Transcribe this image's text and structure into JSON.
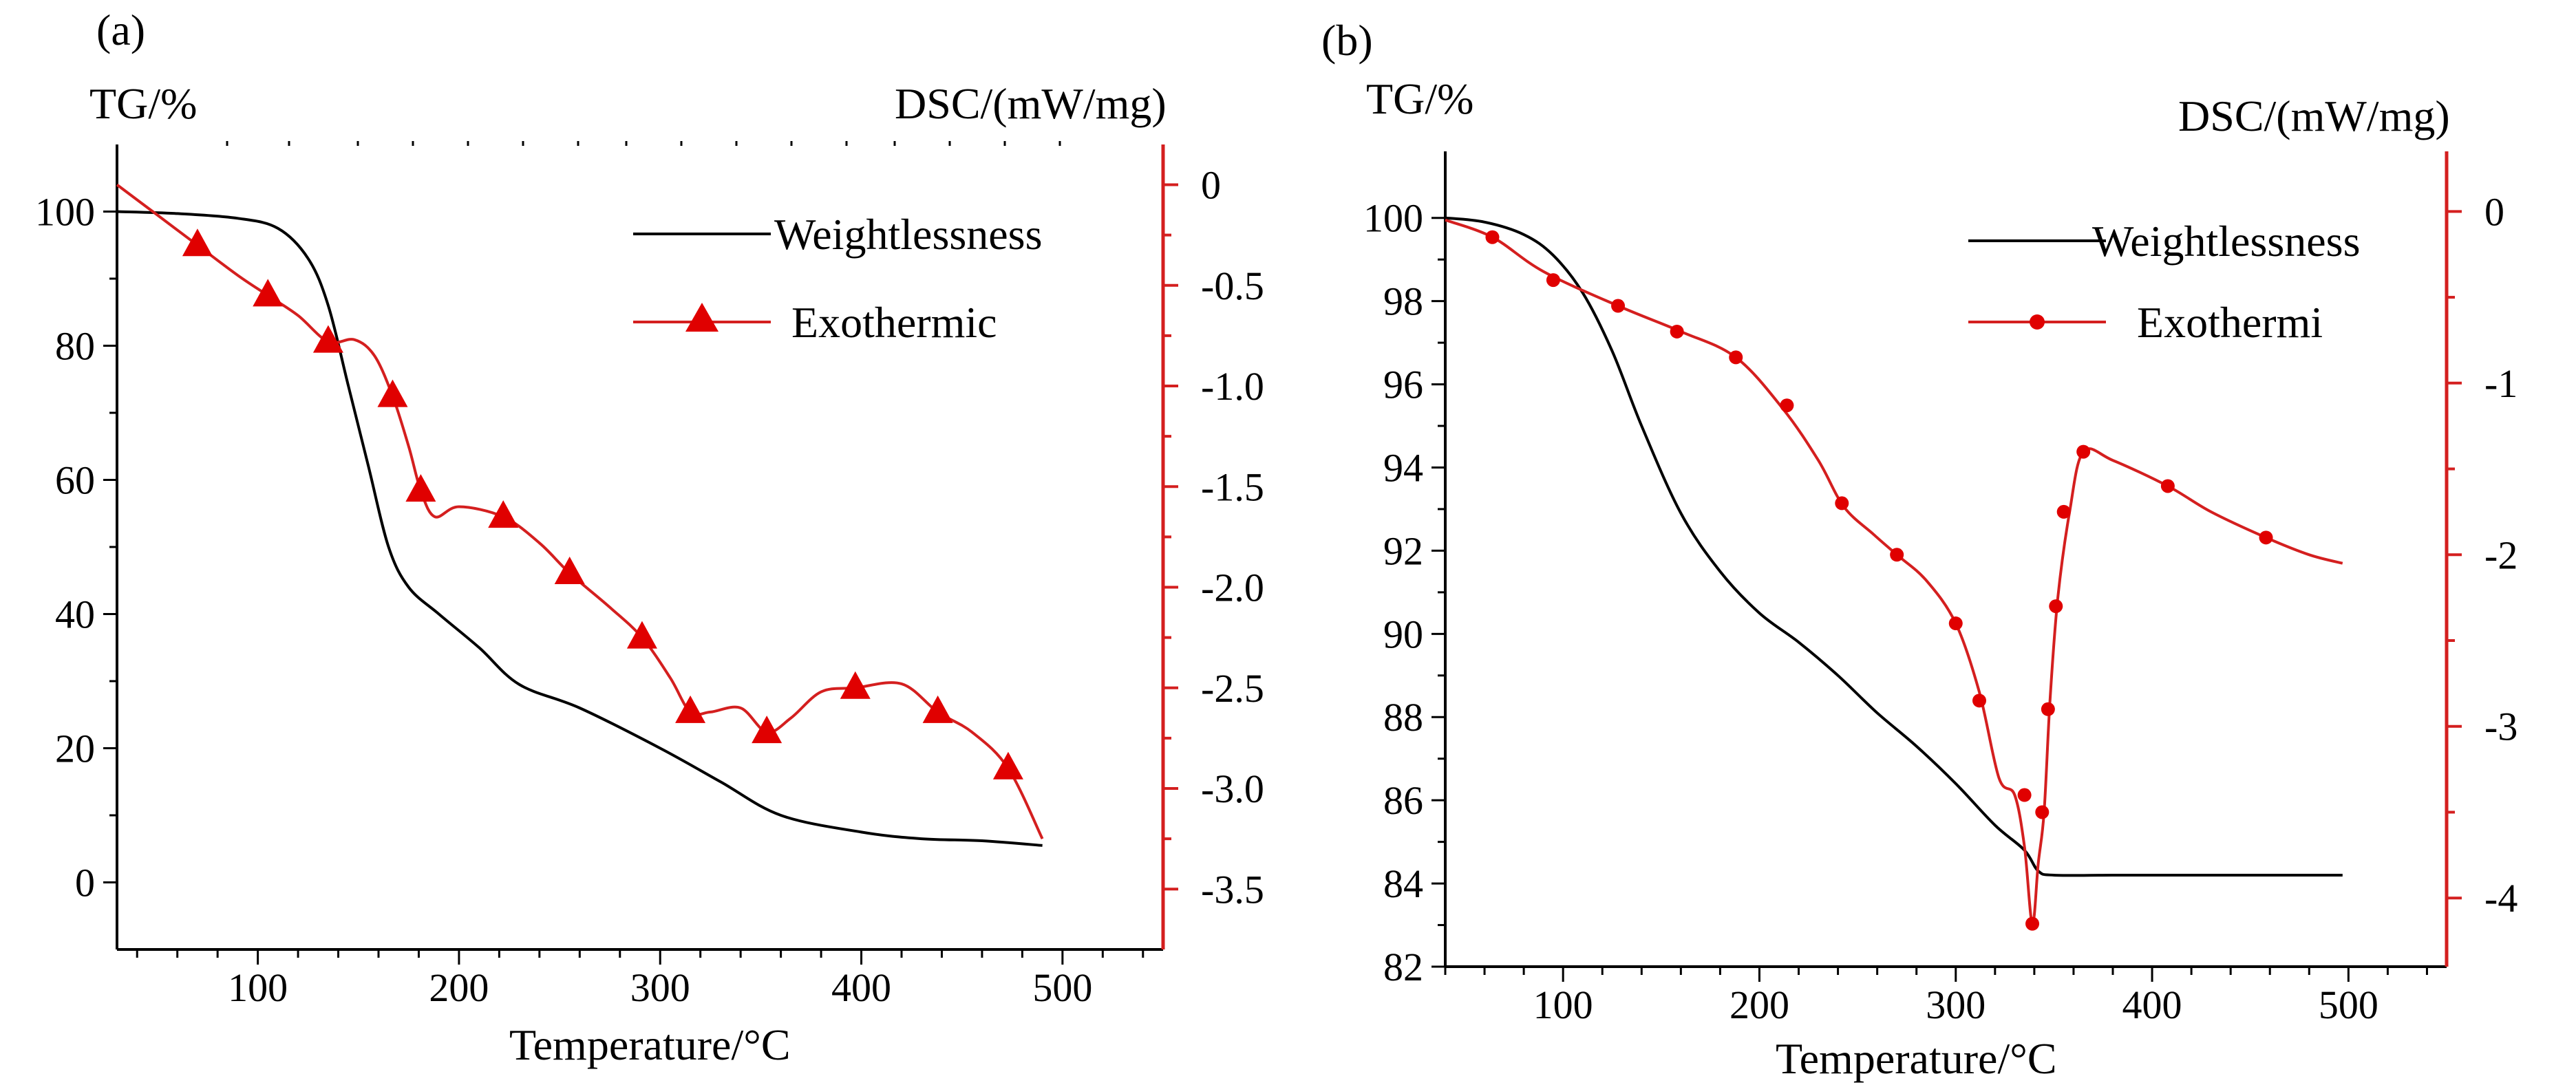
{
  "chart_data": [
    {
      "type": "line",
      "panel_label": "(a)",
      "left_axis_title": "TG/%",
      "right_axis_title": "DSC/(mW/mg)",
      "xlabel": "Temperature/°C",
      "xlim": [
        30,
        550
      ],
      "ylim_left": [
        -10,
        110
      ],
      "ylim_right": [
        -3.8,
        0.2
      ],
      "x_ticks": [
        100,
        200,
        300,
        400,
        500
      ],
      "x_tick_labels": [
        "100",
        "200",
        "300",
        "400",
        "500"
      ],
      "y_left_ticks": [
        0,
        20,
        40,
        60,
        80,
        100
      ],
      "y_left_tick_labels": [
        "0",
        "20",
        "40",
        "60",
        "80",
        "100"
      ],
      "y_right_ticks": [
        0,
        -0.5,
        -1.0,
        -1.5,
        -2.0,
        -2.5,
        -3.0,
        -3.5
      ],
      "y_right_tick_labels": [
        "0",
        "-0.5",
        "-1.0",
        "-1.5",
        "-2.0",
        "-2.5",
        "-3.0",
        "-3.5"
      ],
      "series": [
        {
          "name": "Weightlessness",
          "axis": "left",
          "color": "#000000",
          "marker": "none",
          "x": [
            30,
            60,
            90,
            110,
            125,
            135,
            145,
            155,
            165,
            175,
            190,
            210,
            230,
            260,
            300,
            330,
            360,
            400,
            430,
            460,
            490
          ],
          "y": [
            100,
            99.7,
            99,
            97.5,
            93,
            86,
            74,
            62,
            50,
            44,
            40,
            35,
            29.5,
            26,
            20,
            15,
            10,
            7.5,
            6.5,
            6.2,
            5.5
          ]
        },
        {
          "name": "Exothermic",
          "axis": "right",
          "color": "#d41f1f",
          "marker": "triangle",
          "x": [
            30,
            50,
            70,
            90,
            105,
            120,
            135,
            148,
            158,
            167,
            175,
            181,
            188,
            200,
            222,
            240,
            255,
            275,
            291,
            305,
            315,
            325,
            340,
            353,
            365,
            380,
            397,
            420,
            438,
            455,
            473,
            490
          ],
          "y": [
            0,
            -0.15,
            -0.3,
            -0.45,
            -0.55,
            -0.65,
            -0.78,
            -0.77,
            -0.85,
            -1.05,
            -1.3,
            -1.52,
            -1.65,
            -1.6,
            -1.65,
            -1.78,
            -1.93,
            -2.1,
            -2.25,
            -2.45,
            -2.62,
            -2.62,
            -2.6,
            -2.72,
            -2.65,
            -2.52,
            -2.5,
            -2.48,
            -2.62,
            -2.72,
            -2.9,
            -3.25
          ],
          "markers_x": [
            70,
            105,
            135,
            167,
            181,
            222,
            255,
            291,
            315,
            353,
            397,
            438,
            473
          ],
          "markers_y": [
            -0.3,
            -0.55,
            -0.78,
            -1.05,
            -1.52,
            -1.65,
            -1.93,
            -2.25,
            -2.62,
            -2.72,
            -2.5,
            -2.62,
            -2.9
          ]
        }
      ]
    },
    {
      "type": "line",
      "panel_label": "(b)",
      "left_axis_title": "TG/%",
      "right_axis_title": "DSC/(mW/mg)",
      "xlabel": "Temperature/°C",
      "xlim": [
        40,
        550
      ],
      "ylim_left": [
        82,
        101.6
      ],
      "ylim_right": [
        -4.4,
        0.35
      ],
      "x_ticks": [
        100,
        200,
        300,
        400,
        500
      ],
      "x_tick_labels": [
        "100",
        "200",
        "300",
        "400",
        "500"
      ],
      "y_left_ticks": [
        82,
        84,
        86,
        88,
        90,
        92,
        94,
        96,
        98,
        100
      ],
      "y_left_tick_labels": [
        "82",
        "84",
        "86",
        "88",
        "90",
        "92",
        "94",
        "96",
        "98",
        "100"
      ],
      "y_right_ticks": [
        0,
        -1,
        -2,
        -3,
        -4
      ],
      "y_right_tick_labels": [
        "0",
        "-1",
        "-2",
        "-3",
        "-4"
      ],
      "series": [
        {
          "name": "Weightlessness",
          "axis": "left",
          "color": "#000000",
          "marker": "none",
          "x": [
            40,
            60,
            80,
            95,
            110,
            125,
            140,
            160,
            180,
            200,
            220,
            240,
            260,
            280,
            300,
            320,
            335,
            342,
            350,
            380,
            420,
            460,
            497
          ],
          "y": [
            100,
            99.9,
            99.6,
            99.1,
            98.2,
            96.8,
            95,
            92.9,
            91.5,
            90.5,
            89.8,
            89,
            88.1,
            87.3,
            86.4,
            85.4,
            84.8,
            84.3,
            84.2,
            84.2,
            84.2,
            84.2,
            84.2
          ]
        },
        {
          "name": "Exothermi",
          "axis": "right",
          "color": "#d41f1f",
          "marker": "circle",
          "x": [
            40,
            64,
            90,
            128,
            160,
            188,
            212,
            230,
            243,
            258,
            270,
            285,
            300,
            312,
            322,
            330,
            335,
            339,
            342,
            345,
            348,
            352,
            358,
            365,
            380,
            408,
            430,
            458,
            480,
            497
          ],
          "y": [
            -0.05,
            -0.15,
            -0.35,
            -0.55,
            -0.7,
            -0.85,
            -1.15,
            -1.45,
            -1.72,
            -1.88,
            -2,
            -2.15,
            -2.4,
            -2.8,
            -3.3,
            -3.4,
            -3.7,
            -4.15,
            -3.8,
            -3.5,
            -2.85,
            -2.25,
            -1.75,
            -1.4,
            -1.45,
            -1.6,
            -1.75,
            -1.9,
            -2,
            -2.05
          ],
          "markers_x": [
            64,
            95,
            128,
            158,
            188,
            214,
            242,
            270,
            300,
            312,
            335,
            339,
            344,
            347,
            351,
            355,
            365,
            408,
            458
          ],
          "markers_y": [
            -0.15,
            -0.4,
            -0.55,
            -0.7,
            -0.85,
            -1.13,
            -1.7,
            -2,
            -2.4,
            -2.85,
            -3.4,
            -4.15,
            -3.5,
            -2.9,
            -2.3,
            -1.75,
            -1.4,
            -1.6,
            -1.9
          ]
        }
      ]
    }
  ]
}
